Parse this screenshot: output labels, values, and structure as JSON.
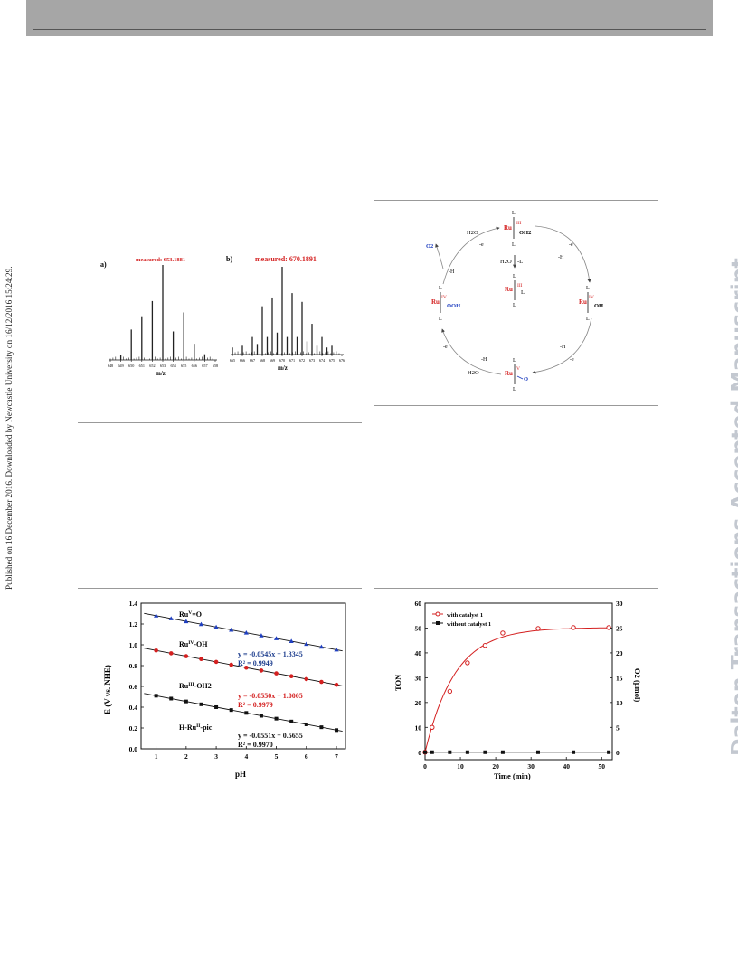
{
  "side_left": "Published on 16 December 2016. Downloaded by Newcastle University on 16/12/2016 15:24:29.",
  "side_right": "Dalton Transactions Accepted Manuscript",
  "ms_figure": {
    "panel_a": {
      "label": "a)",
      "annotation": "measured: 653.1881",
      "xlabel": "m/z",
      "ticks": [
        "648",
        "649",
        "650",
        "651",
        "652",
        "653",
        "654",
        "655",
        "656",
        "657",
        "658"
      ],
      "chart_data": {
        "type": "bar",
        "x": [
          649,
          650,
          651,
          652,
          653,
          654,
          655,
          656,
          657
        ],
        "values": [
          0.05,
          0.32,
          0.46,
          0.62,
          1.0,
          0.3,
          0.5,
          0.17,
          0.06
        ]
      }
    },
    "panel_b": {
      "label": "b)",
      "annotation": "measured: 670.1891",
      "xlabel": "m/z",
      "ticks": [
        "665",
        "666",
        "667",
        "668",
        "669",
        "670",
        "671",
        "672",
        "673",
        "674",
        "675",
        "676"
      ],
      "chart_data": {
        "type": "bar",
        "x": [
          665,
          666,
          667,
          667.5,
          668,
          668.5,
          669,
          669.5,
          670,
          670.5,
          671,
          671.5,
          672,
          672.5,
          673,
          673.5,
          674,
          674.5,
          675
        ],
        "values": [
          0.08,
          0.1,
          0.2,
          0.12,
          0.55,
          0.2,
          0.65,
          0.25,
          1.0,
          0.2,
          0.7,
          0.2,
          0.6,
          0.15,
          0.35,
          0.1,
          0.2,
          0.08,
          0.1
        ]
      }
    }
  },
  "cycle_figure": {
    "ru_label": "Ru",
    "L": "L",
    "H2O": "H2O",
    "O2": "O2",
    "e": "-e",
    "H": "-H",
    "species": {
      "top": {
        "ox": "III",
        "ligand": "OH2"
      },
      "center": {
        "ox": "III",
        "ligand": "L"
      },
      "right": {
        "ox": "IV",
        "ligand": "OH"
      },
      "bottom": {
        "ox": "V",
        "ligand": "O"
      },
      "left": {
        "ox": "IV",
        "ligand": "OOH"
      }
    },
    "center_text": {
      "h2o": "H2O",
      "minus_l": "-L"
    }
  },
  "pourbaix_figure": {
    "ylabel": "E (V vs. NHE)",
    "xlabel": "pH",
    "y_ticks": [
      "0.0",
      "0.2",
      "0.4",
      "0.6",
      "0.8",
      "1.0",
      "1.2",
      "1.4"
    ],
    "x_ticks": [
      "1",
      "2",
      "3",
      "4",
      "5",
      "6",
      "7"
    ],
    "labels": {
      "rv": "Ru",
      "rv_sup": "V",
      "rv_post": "=O",
      "riv": "Ru",
      "riv_sup": "IV",
      "riv_post": "-OH",
      "riii": "Ru",
      "riii_sup": "III",
      "riii_post": "-OH2",
      "rii_pre": "H-Ru",
      "rii_sup": "II",
      "rii_post": "-pic"
    },
    "equations": [
      {
        "eq": "y = -0.0545x + 1.3345",
        "r2": "R² = 0.9949",
        "color": "#1f3f8f"
      },
      {
        "eq": "y = -0.0550x + 1.0005",
        "r2": "R² = 0.9979",
        "color": "#d42020"
      },
      {
        "eq": "y = -0.0551x + 0.5655",
        "r2": "R² = 0.9970",
        "color": "#111111"
      }
    ],
    "chart_data": {
      "type": "scatter",
      "xlim": [
        0.5,
        7.3
      ],
      "ylim": [
        0.0,
        1.4
      ],
      "xlabel": "pH",
      "ylabel": "E (V vs. NHE)",
      "series": [
        {
          "color": "#1f3fc0",
          "marker": "triangle",
          "slope": -0.0545,
          "intercept": 1.3345,
          "x": [
            1.0,
            1.5,
            2.0,
            2.5,
            3.0,
            3.5,
            4.0,
            4.5,
            5.0,
            5.5,
            6.0,
            6.5,
            7.0
          ]
        },
        {
          "color": "#d42020",
          "marker": "circle",
          "slope": -0.055,
          "intercept": 1.0005,
          "x": [
            1.0,
            1.5,
            2.0,
            2.5,
            3.0,
            3.5,
            4.0,
            4.5,
            5.0,
            5.5,
            6.0,
            6.5,
            7.0
          ]
        },
        {
          "color": "#111111",
          "marker": "square",
          "slope": -0.0551,
          "intercept": 0.5655,
          "x": [
            1.0,
            1.5,
            2.0,
            2.5,
            3.0,
            3.5,
            4.0,
            4.5,
            5.0,
            5.5,
            6.0,
            6.5,
            7.0
          ]
        }
      ]
    }
  },
  "ton_figure": {
    "ylabel_left": "TON",
    "ylabel_right": "O2 (μmol)",
    "xlabel": "Time (min)",
    "legend": [
      "with catalyst 1",
      "without catalyst 1"
    ],
    "y_ticks_left": [
      "0",
      "10",
      "20",
      "30",
      "40",
      "50",
      "60"
    ],
    "y_ticks_right": [
      "0",
      "5",
      "10",
      "15",
      "20",
      "25",
      "30"
    ],
    "x_ticks": [
      "0",
      "10",
      "20",
      "30",
      "40",
      "50"
    ],
    "chart_data": {
      "type": "line",
      "xlim": [
        0,
        53
      ],
      "ylim": [
        -3,
        60
      ],
      "series": [
        {
          "name": "with catalyst 1",
          "color": "#d42020",
          "marker": "circle",
          "x": [
            0,
            2,
            7,
            12,
            17,
            22,
            32,
            42,
            52
          ],
          "y": [
            0,
            10,
            24.5,
            36,
            43,
            48,
            49.8,
            50.2,
            50.2
          ]
        },
        {
          "name": "without catalyst 1",
          "color": "#111111",
          "marker": "square",
          "x": [
            0,
            2,
            7,
            12,
            17,
            22,
            32,
            42,
            52
          ],
          "y": [
            0,
            0,
            0,
            0,
            0,
            0,
            0,
            0,
            0
          ]
        }
      ]
    }
  }
}
